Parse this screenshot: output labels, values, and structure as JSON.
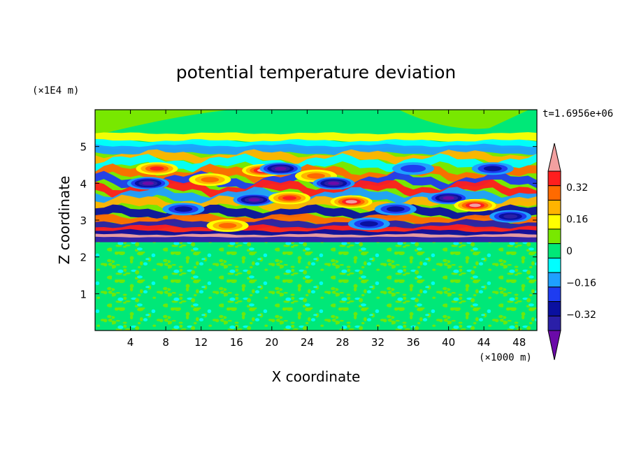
{
  "chart_data": {
    "type": "heatmap",
    "title": "potential temperature deviation",
    "xlabel": "X coordinate",
    "ylabel": "Z coordinate",
    "x_unit": "(×1000 m)",
    "y_unit": "(×1E4 m)",
    "time_label": "t=1.6956e+06",
    "xlim": [
      0,
      50
    ],
    "ylim": [
      0,
      6
    ],
    "x_ticks": [
      4,
      8,
      12,
      16,
      20,
      24,
      28,
      32,
      36,
      40,
      44,
      48
    ],
    "y_ticks": [
      1,
      2,
      3,
      4,
      5
    ],
    "x_tick_labels": [
      "4",
      "8",
      "12",
      "16",
      "20",
      "24",
      "28",
      "32",
      "36",
      "40",
      "44",
      "48"
    ],
    "y_tick_labels": [
      "1",
      "2",
      "3",
      "4",
      "5"
    ],
    "colorbar": {
      "levels": [
        -0.48,
        -0.4,
        -0.32,
        -0.24,
        -0.16,
        -0.08,
        0,
        0.08,
        0.16,
        0.24,
        0.32,
        0.4,
        0.48
      ],
      "colors": [
        "#6b0aa8",
        "#2a1fa8",
        "#0a10a0",
        "#1e3cf0",
        "#1ea0ff",
        "#00ffff",
        "#00e878",
        "#78e800",
        "#ffff00",
        "#ffb400",
        "#ff6a00",
        "#ff1e1e",
        "#f2a0a0"
      ],
      "tick_values": [
        -0.32,
        -0.16,
        0,
        0.16,
        0.32
      ],
      "tick_labels": [
        "−0.32",
        "−0.16",
        "0",
        "0.16",
        "0.32"
      ]
    },
    "regions": {
      "noise_layer_z": [
        0,
        2.4
      ],
      "wave_layer_z": [
        2.4,
        4.9
      ],
      "upper_layer_z": [
        4.9,
        6
      ]
    },
    "features": [
      {
        "x": 6,
        "z": 4.0,
        "value": -0.44
      },
      {
        "x": 7,
        "z": 4.4,
        "value": 0.4
      },
      {
        "x": 10,
        "z": 3.3,
        "value": -0.35
      },
      {
        "x": 13,
        "z": 4.1,
        "value": 0.3
      },
      {
        "x": 15,
        "z": 2.85,
        "value": 0.35
      },
      {
        "x": 18,
        "z": 3.55,
        "value": -0.44
      },
      {
        "x": 19,
        "z": 4.35,
        "value": 0.45
      },
      {
        "x": 21,
        "z": 4.4,
        "value": -0.44
      },
      {
        "x": 22,
        "z": 3.6,
        "value": 0.4
      },
      {
        "x": 25,
        "z": 4.2,
        "value": 0.35
      },
      {
        "x": 27,
        "z": 4.0,
        "value": -0.44
      },
      {
        "x": 29,
        "z": 3.5,
        "value": 0.45
      },
      {
        "x": 31,
        "z": 2.9,
        "value": -0.3
      },
      {
        "x": 34,
        "z": 3.3,
        "value": -0.35
      },
      {
        "x": 36,
        "z": 4.4,
        "value": -0.25
      },
      {
        "x": 40,
        "z": 3.6,
        "value": -0.44
      },
      {
        "x": 43,
        "z": 3.4,
        "value": 0.45
      },
      {
        "x": 45,
        "z": 4.4,
        "value": -0.35
      },
      {
        "x": 47,
        "z": 3.1,
        "value": -0.4
      }
    ]
  }
}
